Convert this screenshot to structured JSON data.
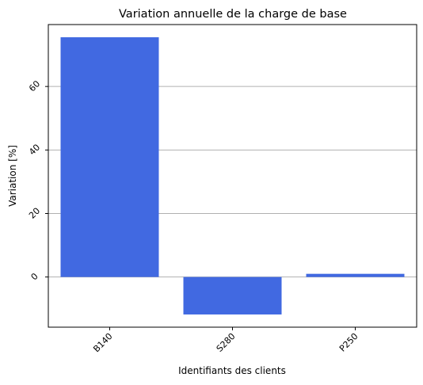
{
  "chart_data": {
    "type": "bar",
    "title": "Variation annuelle de la charge de base",
    "xlabel": "Identifiants des clients",
    "ylabel": "Variation [%]",
    "categories": [
      "B140",
      "S280",
      "P250"
    ],
    "values": [
      75.5,
      -11.8,
      1.0
    ],
    "ylim": [
      -15.8,
      79.5
    ],
    "yticks": [
      0,
      20,
      40,
      60
    ],
    "ytick_labels": [
      "0",
      "20",
      "40",
      "60"
    ],
    "grid": "horizontal",
    "bar_color": "#4169e1",
    "grid_color": "#b0b0b0"
  }
}
